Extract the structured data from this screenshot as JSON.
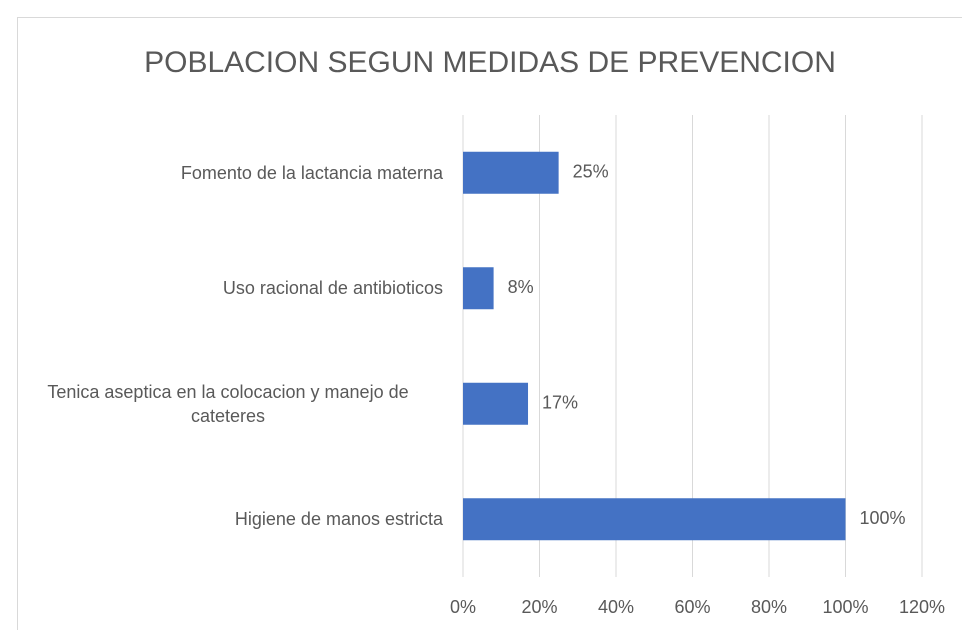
{
  "chart_data": {
    "type": "bar",
    "orientation": "horizontal",
    "title": "POBLACION SEGUN MEDIDAS DE PREVENCION",
    "categories": [
      "Higiene de manos estricta",
      "Tenica aseptica en la colocacion  y manejo de cateteres",
      "Uso racional de antibioticos",
      "Fomento de la lactancia materna"
    ],
    "values": [
      100,
      17,
      8,
      25
    ],
    "value_labels": [
      "100%",
      "17%",
      "8%",
      "25%"
    ],
    "color": "#4472c4",
    "xlim": [
      0,
      120
    ],
    "xticks": [
      {
        "value": 0,
        "label": "0%"
      },
      {
        "value": 20,
        "label": "20%"
      },
      {
        "value": 40,
        "label": "40%"
      },
      {
        "value": 60,
        "label": "60%"
      },
      {
        "value": 80,
        "label": "80%"
      },
      {
        "value": 100,
        "label": "100%"
      },
      {
        "value": 120,
        "label": "120%"
      }
    ],
    "grid": true
  }
}
